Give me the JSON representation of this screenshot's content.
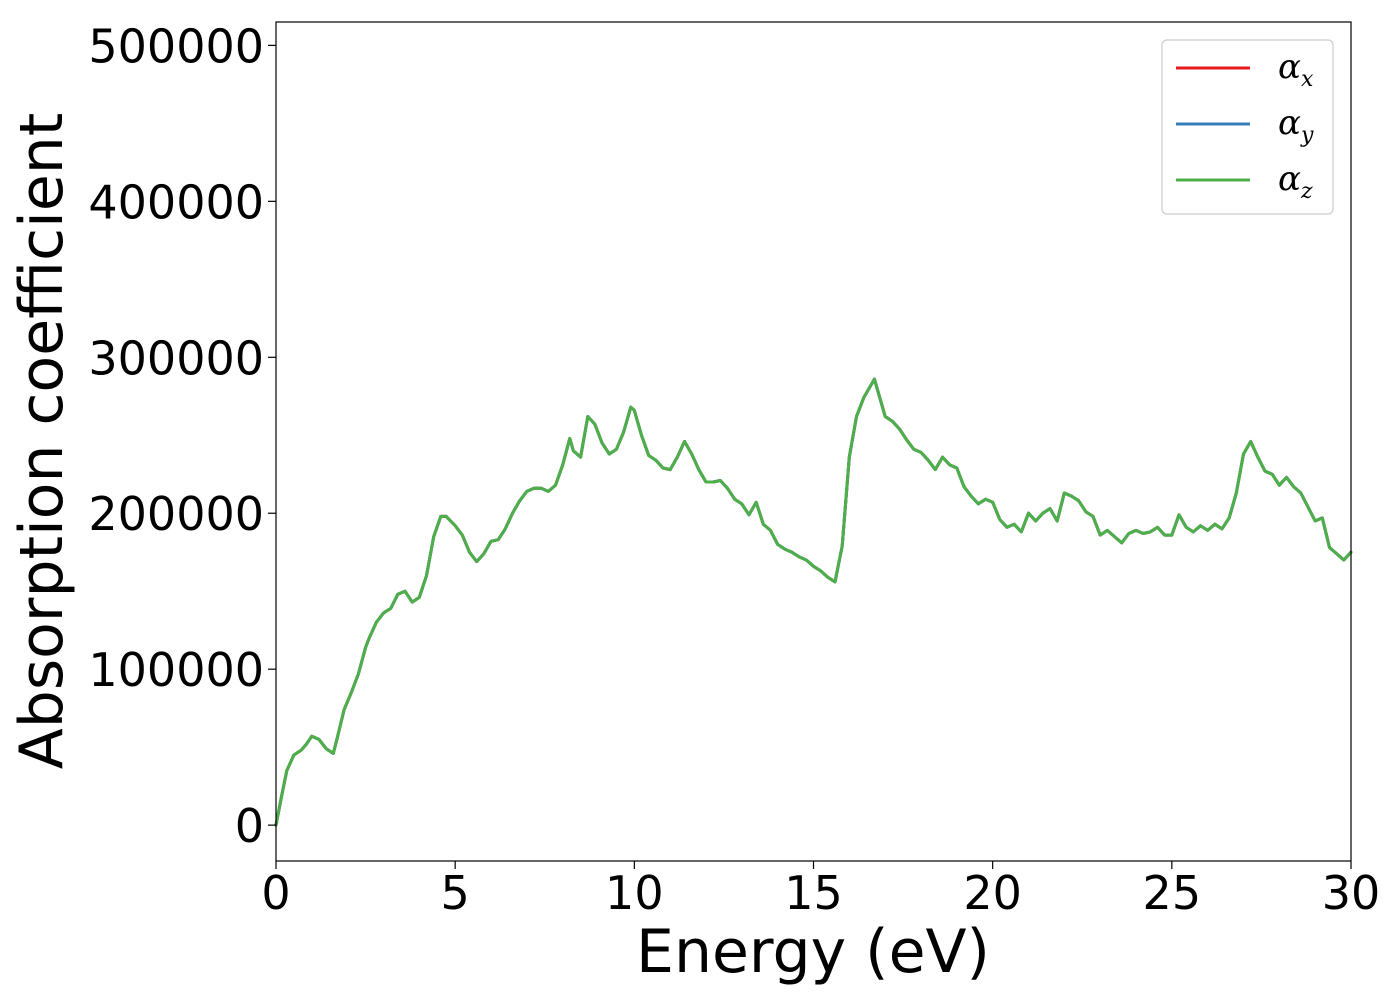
{
  "chart_data": {
    "type": "line",
    "title": "",
    "xlabel": "Energy (eV)",
    "ylabel": "Absorption coefficient",
    "xlim": [
      0,
      30
    ],
    "ylim": [
      -23000,
      515000
    ],
    "xticks": [
      0,
      5,
      10,
      15,
      20,
      25,
      30
    ],
    "yticks": [
      0,
      100000,
      200000,
      300000,
      400000,
      500000
    ],
    "xtick_labels": [
      "0",
      "5",
      "10",
      "15",
      "20",
      "25",
      "30"
    ],
    "ytick_labels": [
      "0",
      "100000",
      "200000",
      "300000",
      "400000",
      "500000"
    ],
    "grid": false,
    "legend": {
      "placement": "top-right",
      "entries": [
        {
          "symbol": "α",
          "sub": "x",
          "color": "#e41a1c"
        },
        {
          "symbol": "α",
          "sub": "y",
          "color": "#377eb8"
        },
        {
          "symbol": "α",
          "sub": "z",
          "color": "#4daf4a"
        }
      ]
    },
    "x": [
      0,
      0.15,
      0.3,
      0.5,
      0.7,
      0.85,
      1.0,
      1.2,
      1.4,
      1.6,
      1.7,
      1.9,
      2.1,
      2.3,
      2.5,
      2.6,
      2.8,
      3.0,
      3.2,
      3.4,
      3.6,
      3.8,
      4.0,
      4.2,
      4.4,
      4.6,
      4.75,
      5.0,
      5.2,
      5.4,
      5.6,
      5.8,
      6.0,
      6.2,
      6.4,
      6.6,
      6.8,
      7.0,
      7.2,
      7.4,
      7.6,
      7.8,
      8.0,
      8.2,
      8.3,
      8.5,
      8.7,
      8.9,
      9.1,
      9.3,
      9.5,
      9.7,
      9.9,
      10.0,
      10.2,
      10.4,
      10.6,
      10.8,
      11.0,
      11.2,
      11.4,
      11.6,
      11.8,
      12.0,
      12.2,
      12.4,
      12.6,
      12.8,
      13.0,
      13.2,
      13.4,
      13.6,
      13.8,
      14.0,
      14.2,
      14.4,
      14.6,
      14.8,
      15.0,
      15.2,
      15.4,
      15.6,
      15.8,
      16.0,
      16.2,
      16.4,
      16.7,
      17.0,
      17.2,
      17.4,
      17.6,
      17.8,
      18.0,
      18.2,
      18.4,
      18.6,
      18.8,
      19.0,
      19.2,
      19.4,
      19.6,
      19.8,
      20.0,
      20.2,
      20.4,
      20.6,
      20.8,
      21.0,
      21.2,
      21.4,
      21.6,
      21.8,
      22.0,
      22.2,
      22.4,
      22.6,
      22.8,
      23.0,
      23.2,
      23.4,
      23.6,
      23.8,
      24.0,
      24.2,
      24.4,
      24.6,
      24.8,
      25.0,
      25.2,
      25.4,
      25.6,
      25.8,
      26.0,
      26.2,
      26.4,
      26.6,
      26.8,
      27.0,
      27.2,
      27.4,
      27.6,
      27.8,
      28.0,
      28.2,
      28.4,
      28.6,
      28.8,
      29.0,
      29.2,
      29.4,
      29.6,
      29.8,
      30.0
    ],
    "series": [
      {
        "name": "α_x",
        "color": "#e41a1c",
        "values": [
          0,
          18000,
          35000,
          45000,
          48000,
          52000,
          57000,
          55000,
          49000,
          46000,
          55000,
          74000,
          85000,
          97000,
          114000,
          120000,
          130000,
          136000,
          139000,
          148000,
          150000,
          143000,
          146000,
          160000,
          185000,
          198000,
          198000,
          192000,
          186000,
          175000,
          169000,
          174000,
          182000,
          183000,
          190000,
          200000,
          208000,
          214000,
          216000,
          216000,
          214000,
          218000,
          231000,
          248000,
          240000,
          236000,
          262000,
          257000,
          245000,
          238000,
          241000,
          252000,
          268000,
          266000,
          250000,
          237000,
          234000,
          229000,
          228000,
          236000,
          246000,
          238000,
          228000,
          220000,
          220000,
          221000,
          216000,
          209000,
          206000,
          199000,
          207000,
          193000,
          189000,
          180000,
          177000,
          175000,
          172000,
          170000,
          166000,
          163000,
          159000,
          156000,
          179000,
          236000,
          262000,
          274000,
          286000,
          262000,
          259000,
          254000,
          247000,
          241000,
          239000,
          234000,
          228000,
          236000,
          231000,
          229000,
          217000,
          211000,
          206000,
          209000,
          207000,
          196000,
          191000,
          193000,
          188000,
          200000,
          195000,
          200000,
          203000,
          195000,
          213000,
          211000,
          208000,
          201000,
          198000,
          186000,
          189000,
          185000,
          181000,
          187000,
          189000,
          187000,
          188000,
          191000,
          186000,
          186000,
          199000,
          191000,
          188000,
          192000,
          189000,
          193000,
          190000,
          197000,
          213000,
          238000,
          246000,
          236000,
          227000,
          225000,
          218000,
          223000,
          217000,
          213000,
          204000,
          195000,
          197000,
          178000,
          174000,
          170000,
          175000
        ]
      },
      {
        "name": "α_y",
        "color": "#377eb8",
        "values": [
          0,
          18000,
          35000,
          45000,
          48000,
          52000,
          57000,
          55000,
          49000,
          46000,
          55000,
          74000,
          85000,
          97000,
          114000,
          120000,
          130000,
          136000,
          139000,
          148000,
          150000,
          143000,
          146000,
          160000,
          185000,
          198000,
          198000,
          192000,
          186000,
          175000,
          169000,
          174000,
          182000,
          183000,
          190000,
          200000,
          208000,
          214000,
          216000,
          216000,
          214000,
          218000,
          231000,
          248000,
          240000,
          236000,
          262000,
          257000,
          245000,
          238000,
          241000,
          252000,
          268000,
          266000,
          250000,
          237000,
          234000,
          229000,
          228000,
          236000,
          246000,
          238000,
          228000,
          220000,
          220000,
          221000,
          216000,
          209000,
          206000,
          199000,
          207000,
          193000,
          189000,
          180000,
          177000,
          175000,
          172000,
          170000,
          166000,
          163000,
          159000,
          156000,
          179000,
          236000,
          262000,
          274000,
          286000,
          262000,
          259000,
          254000,
          247000,
          241000,
          239000,
          234000,
          228000,
          236000,
          231000,
          229000,
          217000,
          211000,
          206000,
          209000,
          207000,
          196000,
          191000,
          193000,
          188000,
          200000,
          195000,
          200000,
          203000,
          195000,
          213000,
          211000,
          208000,
          201000,
          198000,
          186000,
          189000,
          185000,
          181000,
          187000,
          189000,
          187000,
          188000,
          191000,
          186000,
          186000,
          199000,
          191000,
          188000,
          192000,
          189000,
          193000,
          190000,
          197000,
          213000,
          238000,
          246000,
          236000,
          227000,
          225000,
          218000,
          223000,
          217000,
          213000,
          204000,
          195000,
          197000,
          178000,
          174000,
          170000,
          175000
        ]
      },
      {
        "name": "α_z",
        "color": "#4daf4a",
        "values": [
          0,
          18000,
          35000,
          45000,
          48000,
          52000,
          57000,
          55000,
          49000,
          46000,
          55000,
          74000,
          85000,
          97000,
          114000,
          120000,
          130000,
          136000,
          139000,
          148000,
          150000,
          143000,
          146000,
          160000,
          185000,
          198000,
          198000,
          192000,
          186000,
          175000,
          169000,
          174000,
          182000,
          183000,
          190000,
          200000,
          208000,
          214000,
          216000,
          216000,
          214000,
          218000,
          231000,
          248000,
          240000,
          236000,
          262000,
          257000,
          245000,
          238000,
          241000,
          252000,
          268000,
          266000,
          250000,
          237000,
          234000,
          229000,
          228000,
          236000,
          246000,
          238000,
          228000,
          220000,
          220000,
          221000,
          216000,
          209000,
          206000,
          199000,
          207000,
          193000,
          189000,
          180000,
          177000,
          175000,
          172000,
          170000,
          166000,
          163000,
          159000,
          156000,
          179000,
          236000,
          262000,
          274000,
          286000,
          262000,
          259000,
          254000,
          247000,
          241000,
          239000,
          234000,
          228000,
          236000,
          231000,
          229000,
          217000,
          211000,
          206000,
          209000,
          207000,
          196000,
          191000,
          193000,
          188000,
          200000,
          195000,
          200000,
          203000,
          195000,
          213000,
          211000,
          208000,
          201000,
          198000,
          186000,
          189000,
          185000,
          181000,
          187000,
          189000,
          187000,
          188000,
          191000,
          186000,
          186000,
          199000,
          191000,
          188000,
          192000,
          189000,
          193000,
          190000,
          197000,
          213000,
          238000,
          246000,
          236000,
          227000,
          225000,
          218000,
          223000,
          217000,
          213000,
          204000,
          195000,
          197000,
          178000,
          174000,
          170000,
          175000
        ]
      }
    ]
  }
}
